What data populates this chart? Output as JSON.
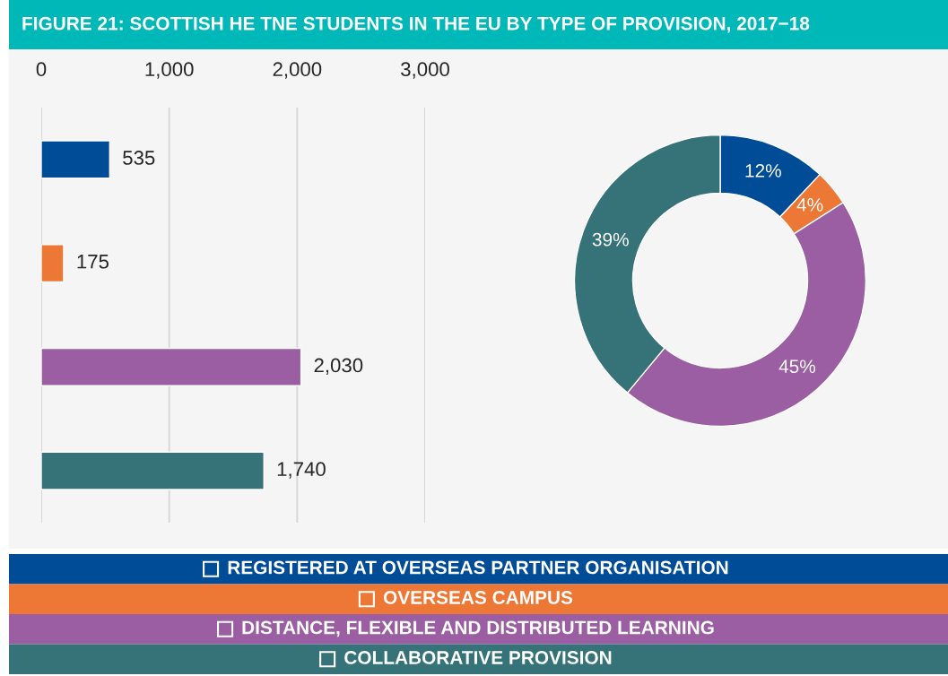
{
  "chart_data": [
    {
      "type": "bar",
      "title": "FIGURE 21: SCOTTISH HE TNE STUDENTS IN THE EU BY TYPE OF PROVISION, 2017−18",
      "orientation": "horizontal",
      "categories": [
        null,
        null,
        null,
        null
      ],
      "values": [
        535,
        175,
        2030,
        1740
      ],
      "colors": [
        "#004c97",
        "#ed7735",
        "#9b5ea2",
        "#367378"
      ],
      "value_labels": [
        "535",
        "175",
        "2,030",
        "1,740"
      ],
      "xlim": [
        0,
        3000
      ],
      "xticks": [
        {
          "value": 0,
          "label": "0"
        },
        {
          "value": 1000,
          "label": "1,000"
        },
        {
          "value": 2000,
          "label": "2,000"
        },
        {
          "value": 3000,
          "label": "3,000"
        }
      ],
      "grid": "x"
    },
    {
      "type": "donut",
      "categories": [
        "REGISTERED AT OVERSEAS PARTNER ORGANISATION",
        "OVERSEAS CAMPUS",
        "DISTANCE, FLEXIBLE AND DISTRIBUTED LEARNING",
        "COLLABORATIVE PROVISION"
      ],
      "values": [
        12,
        4,
        45,
        39
      ],
      "colors": [
        "#004c97",
        "#ed7735",
        "#9b5ea2",
        "#367378"
      ],
      "value_labels": [
        "12%",
        "4%",
        "45%",
        "39%"
      ],
      "legend": "bottom"
    }
  ]
}
